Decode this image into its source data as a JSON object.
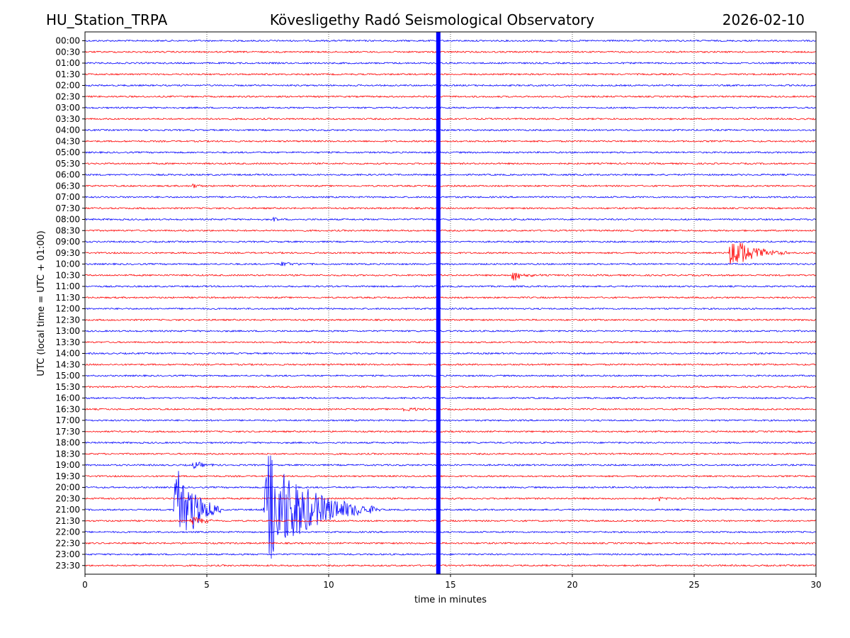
{
  "header": {
    "left": "HU_Station_TRPA",
    "center": "Kövesligethy Radó Seismological Observatory",
    "right": "2026-02-10"
  },
  "chart_data": {
    "type": "line",
    "title": "Kövesligethy Radó Seismological Observatory",
    "xlabel": "time in minutes",
    "ylabel": "UTC (local time = UTC + 01:00)",
    "xlim": [
      0,
      30
    ],
    "xticks": [
      0,
      5,
      10,
      15,
      20,
      25,
      30
    ],
    "grid": "vertical dotted",
    "colors": {
      "odd_hour": "#0000ff",
      "half_hour": "#ff0000",
      "grid": "#000000"
    },
    "rows": [
      "00:00",
      "00:30",
      "01:00",
      "01:30",
      "02:00",
      "02:30",
      "03:00",
      "03:30",
      "04:00",
      "04:30",
      "05:00",
      "05:30",
      "06:00",
      "06:30",
      "07:00",
      "07:30",
      "08:00",
      "08:30",
      "09:00",
      "09:30",
      "10:00",
      "10:30",
      "11:00",
      "11:30",
      "12:00",
      "12:30",
      "13:00",
      "13:30",
      "14:00",
      "14:30",
      "15:00",
      "15:30",
      "16:00",
      "16:30",
      "17:00",
      "17:30",
      "18:00",
      "18:30",
      "19:00",
      "19:30",
      "20:00",
      "20:30",
      "21:00",
      "21:30",
      "22:00",
      "22:30",
      "23:00",
      "23:30"
    ],
    "events": [
      {
        "row": "09:30",
        "start_min": 26.4,
        "duration_min": 2.5,
        "amplitude": 30,
        "color": "#ff0000"
      },
      {
        "row": "10:30",
        "start_min": 17.5,
        "duration_min": 1.2,
        "amplitude": 12,
        "color": "#ff0000"
      },
      {
        "row": "10:00",
        "start_min": 8.0,
        "duration_min": 1.5,
        "amplitude": 5,
        "color": "#0000ff"
      },
      {
        "row": "21:00",
        "start_min": 3.6,
        "duration_min": 2.0,
        "amplitude": 100,
        "color": "#0000ff"
      },
      {
        "row": "21:00",
        "start_min": 7.3,
        "duration_min": 4.8,
        "amplitude": 95,
        "color": "#0000ff"
      },
      {
        "row": "21:30",
        "start_min": 4.3,
        "duration_min": 1.5,
        "amplitude": 8,
        "color": "#ff0000"
      },
      {
        "row": "19:00",
        "start_min": 4.4,
        "duration_min": 1.2,
        "amplitude": 7,
        "color": "#0000ff"
      },
      {
        "row": "16:30",
        "start_min": 13.0,
        "duration_min": 1.5,
        "amplitude": 4,
        "color": "#ff0000"
      },
      {
        "row": "20:30",
        "start_min": 23.5,
        "duration_min": 0.6,
        "amplitude": 5,
        "color": "#ff0000"
      },
      {
        "row": "06:30",
        "start_min": 4.4,
        "duration_min": 0.5,
        "amplitude": 6,
        "color": "#ff0000"
      },
      {
        "row": "08:00",
        "start_min": 7.7,
        "duration_min": 0.4,
        "amplitude": 8,
        "color": "#0000ff"
      }
    ],
    "vertical_band": {
      "x_min": 14.5,
      "color": "#0000ff"
    }
  }
}
